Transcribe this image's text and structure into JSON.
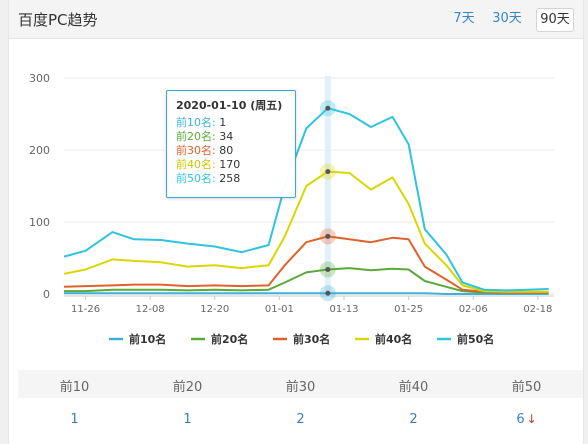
{
  "header": {
    "title": "百度PC趋势",
    "ranges": [
      "7天",
      "30天",
      "90天"
    ],
    "active_range": "90天"
  },
  "colors": {
    "top10": "#3fb0d8",
    "top20": "#5aaa3a",
    "top30": "#e0622a",
    "top40": "#d8d800",
    "top50": "#2ec4de",
    "grid": "#e8e8e8",
    "link": "#3a86c8"
  },
  "tooltip": {
    "title": "2020-01-10 (周五)",
    "rows": [
      {
        "label": "前10名:",
        "value": "1",
        "color": "#3fb0d8"
      },
      {
        "label": "前20名:",
        "value": "34",
        "color": "#5aaa3a"
      },
      {
        "label": "前30名:",
        "value": "80",
        "color": "#e0622a"
      },
      {
        "label": "前40名:",
        "value": "170",
        "color": "#c8c800"
      },
      {
        "label": "前50名:",
        "value": "258",
        "color": "#2ec4de"
      }
    ]
  },
  "chart_data": {
    "type": "line",
    "title": "",
    "ylim": [
      0,
      300
    ],
    "yticks": [
      0,
      100,
      200,
      300
    ],
    "xticks": [
      "11-26",
      "12-08",
      "12-20",
      "01-01",
      "01-13",
      "01-25",
      "02-06",
      "02-18"
    ],
    "legend": "bottom",
    "grid": true,
    "highlight_date": "2020-01-10",
    "series": [
      {
        "name": "前10名",
        "color": "#3fb0d8",
        "x": [
          "11-22",
          "11-26",
          "12-01",
          "12-05",
          "12-10",
          "12-15",
          "12-20",
          "12-25",
          "12-30",
          "01-02",
          "01-06",
          "01-10",
          "01-14",
          "01-18",
          "01-22",
          "01-25",
          "01-28",
          "02-01",
          "02-04",
          "02-08",
          "02-12",
          "02-16",
          "02-20"
        ],
        "values": [
          1,
          1,
          1,
          1,
          1,
          1,
          1,
          1,
          1,
          1,
          1,
          1,
          1,
          1,
          1,
          1,
          1,
          0,
          0,
          0,
          0,
          0,
          0
        ]
      },
      {
        "name": "前20名",
        "color": "#5aaa3a",
        "x": [
          "11-22",
          "11-26",
          "12-01",
          "12-05",
          "12-10",
          "12-15",
          "12-20",
          "12-25",
          "12-30",
          "01-02",
          "01-06",
          "01-10",
          "01-14",
          "01-18",
          "01-22",
          "01-25",
          "01-28",
          "02-01",
          "02-04",
          "02-08",
          "02-12",
          "02-16",
          "02-20"
        ],
        "values": [
          4,
          4,
          6,
          6,
          6,
          5,
          6,
          5,
          6,
          16,
          30,
          34,
          36,
          33,
          35,
          34,
          18,
          10,
          4,
          2,
          2,
          2,
          2
        ]
      },
      {
        "name": "前30名",
        "color": "#e0622a",
        "x": [
          "11-22",
          "11-26",
          "12-01",
          "12-05",
          "12-10",
          "12-15",
          "12-20",
          "12-25",
          "12-30",
          "01-02",
          "01-06",
          "01-10",
          "01-14",
          "01-18",
          "01-22",
          "01-25",
          "01-28",
          "02-01",
          "02-04",
          "02-08",
          "02-12",
          "02-16",
          "02-20"
        ],
        "values": [
          10,
          11,
          12,
          13,
          13,
          11,
          12,
          11,
          12,
          40,
          72,
          80,
          76,
          72,
          78,
          76,
          38,
          20,
          6,
          3,
          2,
          2,
          2
        ]
      },
      {
        "name": "前40名",
        "color": "#d8d800",
        "x": [
          "11-22",
          "11-26",
          "12-01",
          "12-05",
          "12-10",
          "12-15",
          "12-20",
          "12-25",
          "12-30",
          "01-02",
          "01-06",
          "01-10",
          "01-14",
          "01-18",
          "01-22",
          "01-25",
          "01-28",
          "02-01",
          "02-04",
          "02-08",
          "02-12",
          "02-16",
          "02-20"
        ],
        "values": [
          28,
          34,
          48,
          46,
          44,
          38,
          40,
          36,
          40,
          80,
          150,
          170,
          168,
          145,
          162,
          125,
          70,
          40,
          12,
          4,
          3,
          3,
          3
        ]
      },
      {
        "name": "前50名",
        "color": "#2ec4de",
        "x": [
          "11-22",
          "11-26",
          "12-01",
          "12-05",
          "12-10",
          "12-15",
          "12-20",
          "12-25",
          "12-30",
          "01-02",
          "01-06",
          "01-10",
          "01-14",
          "01-18",
          "01-22",
          "01-25",
          "01-28",
          "02-01",
          "02-04",
          "02-08",
          "02-12",
          "02-16",
          "02-20"
        ],
        "values": [
          52,
          60,
          86,
          76,
          75,
          70,
          66,
          58,
          68,
          150,
          230,
          258,
          250,
          232,
          246,
          208,
          90,
          55,
          16,
          6,
          5,
          6,
          7
        ]
      }
    ]
  },
  "rank_table": {
    "headers": [
      "前10",
      "前20",
      "前30",
      "前40",
      "前50"
    ],
    "values": [
      "1",
      "1",
      "2",
      "2",
      "6"
    ],
    "trend_icon": "arrow-down-icon"
  }
}
